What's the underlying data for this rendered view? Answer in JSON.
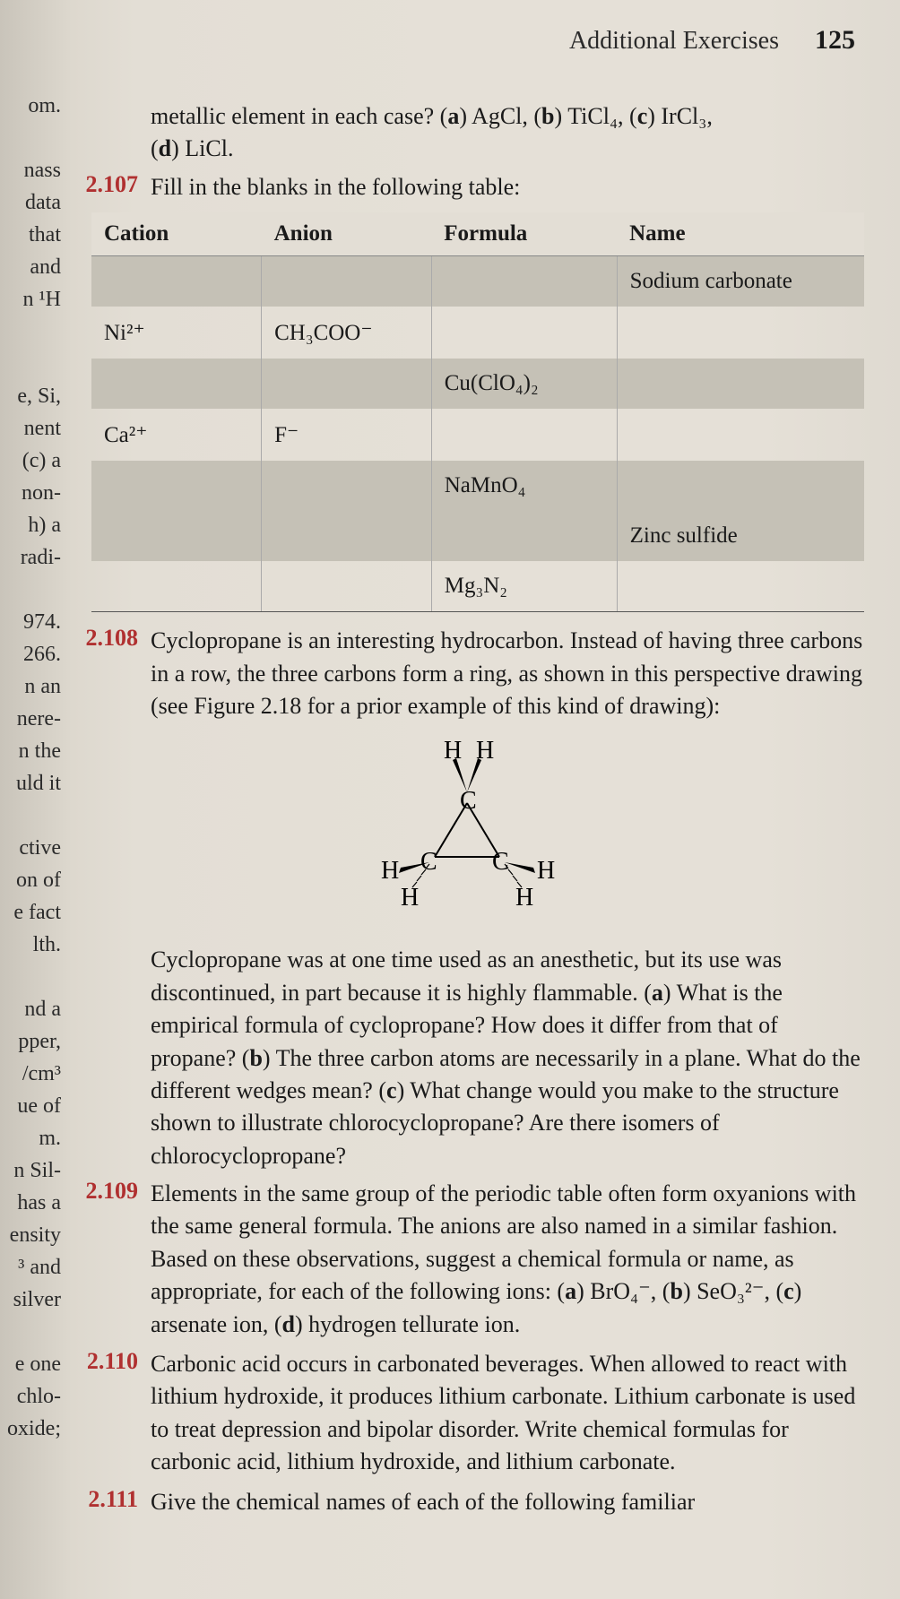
{
  "header": {
    "title": "Additional Exercises",
    "page_number": "125"
  },
  "left_margin_fragments": [
    "om.",
    "",
    "nass",
    "data",
    "that",
    "and",
    "n ¹H",
    "",
    "",
    "e, Si,",
    "nent",
    "(c) a",
    "non-",
    "h) a",
    "radi-",
    "",
    "974.",
    "266.",
    "n an",
    "nere-",
    "n the",
    "uld it",
    "",
    "ctive",
    "on of",
    "e fact",
    "lth.",
    "",
    "nd a",
    "pper,",
    "/cm³",
    "ue of",
    "m.",
    "n Sil-",
    "has a",
    "ensity",
    "³ and",
    "silver",
    "",
    "e one",
    " chlo-",
    "oxide;"
  ],
  "ex_intro": {
    "line1": "metallic element in each case? (a) AgCl, (b) TiCl₄, (c) IrCl₃,",
    "line2": "(d) LiCl."
  },
  "ex107": {
    "number": "2.107",
    "text": "Fill in the blanks in the following table:",
    "table": {
      "headers": [
        "Cation",
        "Anion",
        "Formula",
        "Name"
      ],
      "rows": [
        {
          "shade": true,
          "cells": [
            "",
            "",
            "",
            "Sodium carbonate"
          ]
        },
        {
          "shade": false,
          "cells": [
            "Ni²⁺",
            "CH₃COO⁻",
            "",
            ""
          ]
        },
        {
          "shade": true,
          "cells": [
            "",
            "",
            "Cu(ClO₄)₂",
            ""
          ]
        },
        {
          "shade": false,
          "cells": [
            "Ca²⁺",
            "F⁻",
            "",
            ""
          ]
        },
        {
          "shade": true,
          "cells": [
            "",
            "",
            "NaMnO₄",
            ""
          ]
        },
        {
          "shade": true,
          "cells": [
            "",
            "",
            "",
            "Zinc sulfide"
          ]
        },
        {
          "shade": false,
          "cells": [
            "",
            "",
            "Mg₃N₂",
            ""
          ]
        }
      ]
    }
  },
  "ex108": {
    "number": "2.108",
    "p1": "Cyclopropane is an interesting hydrocarbon. Instead of having three carbons in a row, the three carbons form a ring, as shown in this perspective drawing (see Figure 2.18 for a prior example of this kind of drawing):",
    "diagram": {
      "atoms": [
        "H",
        "H",
        "C",
        "C",
        "C",
        "H",
        "H",
        "H",
        "H"
      ]
    },
    "p2": "Cyclopropane was at one time used as an anesthetic, but its use was discontinued, in part because it is highly flammable. (a) What is the empirical formula of cyclopropane? How does it differ from that of propane? (b) The three carbon atoms are necessarily in a plane. What do the different wedges mean? (c) What change would you make to the structure shown to illustrate chlorocyclopropane? Are there isomers of chlorocyclopropane?"
  },
  "ex109": {
    "number": "2.109",
    "text": "Elements in the same group of the periodic table often form oxyanions with the same general formula. The anions are also named in a similar fashion. Based on these observations, suggest a chemical formula or name, as appropriate, for each of the following ions: (a) BrO₄⁻, (b) SeO₃²⁻, (c) arsenate ion, (d) hydrogen tellurate ion."
  },
  "ex110": {
    "number": "2.110",
    "text": "Carbonic acid occurs in carbonated beverages. When allowed to react with lithium hydroxide, it produces lithium carbonate. Lithium carbonate is used to treat depression and bipolar disorder. Write chemical formulas for carbonic acid, lithium hydroxide, and lithium carbonate."
  },
  "ex111": {
    "number": "2.111",
    "text": "Give the chemical names of each of the following familiar"
  }
}
